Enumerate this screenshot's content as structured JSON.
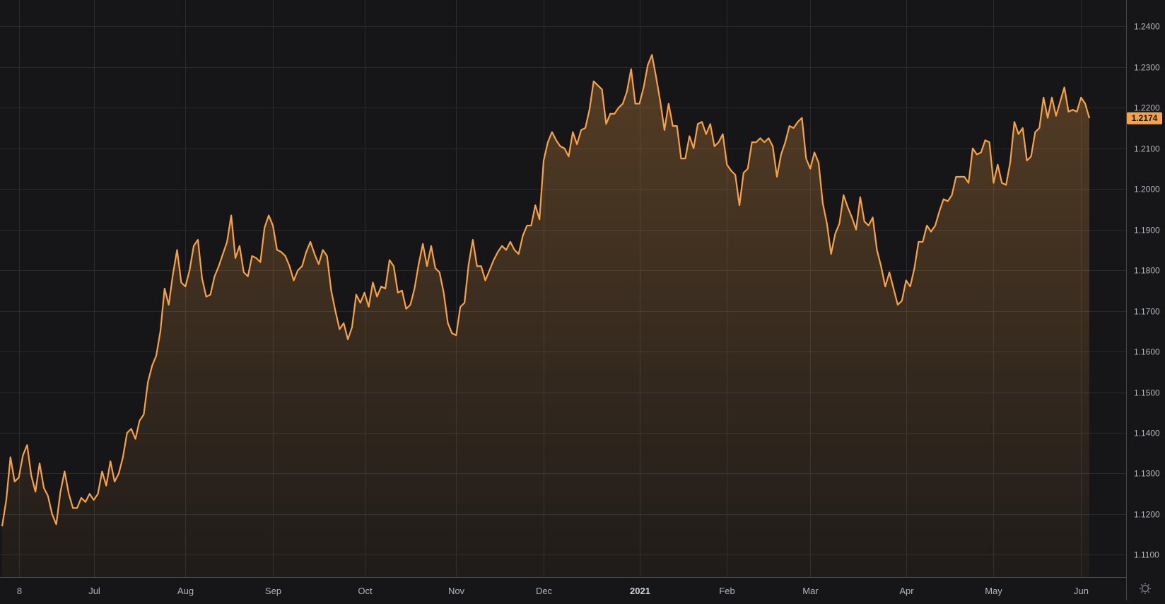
{
  "chart_data": {
    "type": "area",
    "x_labels": [
      {
        "label": "8",
        "idx": 4
      },
      {
        "label": "Jul",
        "idx": 22
      },
      {
        "label": "Aug",
        "idx": 44
      },
      {
        "label": "Sep",
        "idx": 65
      },
      {
        "label": "Oct",
        "idx": 87
      },
      {
        "label": "Nov",
        "idx": 109
      },
      {
        "label": "Dec",
        "idx": 130
      },
      {
        "label": "2021",
        "idx": 153,
        "bold": true
      },
      {
        "label": "Feb",
        "idx": 174
      },
      {
        "label": "Mar",
        "idx": 194
      },
      {
        "label": "Apr",
        "idx": 217
      },
      {
        "label": "May",
        "idx": 238
      },
      {
        "label": "Jun",
        "idx": 259
      }
    ],
    "y_ticks": [
      "1.1100",
      "1.1200",
      "1.1300",
      "1.1400",
      "1.1500",
      "1.1600",
      "1.1700",
      "1.1800",
      "1.1900",
      "1.2000",
      "1.2100",
      "1.2200",
      "1.2300",
      "1.2400"
    ],
    "ylim": [
      1.1045,
      1.2465
    ],
    "last_value": "1.2174",
    "line_color": "#f7a245",
    "values": [
      1.117,
      1.1235,
      1.134,
      1.128,
      1.129,
      1.1345,
      1.137,
      1.1295,
      1.1255,
      1.1325,
      1.1265,
      1.1245,
      1.12,
      1.1175,
      1.1255,
      1.1305,
      1.125,
      1.1215,
      1.1215,
      1.124,
      1.123,
      1.125,
      1.1235,
      1.125,
      1.1305,
      1.127,
      1.133,
      1.128,
      1.13,
      1.134,
      1.14,
      1.141,
      1.1385,
      1.143,
      1.1445,
      1.1525,
      1.1565,
      1.159,
      1.165,
      1.1755,
      1.1715,
      1.179,
      1.185,
      1.177,
      1.176,
      1.18,
      1.186,
      1.1875,
      1.178,
      1.1735,
      1.174,
      1.1785,
      1.181,
      1.184,
      1.187,
      1.1935,
      1.183,
      1.186,
      1.1795,
      1.1785,
      1.1835,
      1.183,
      1.182,
      1.1905,
      1.1935,
      1.191,
      1.185,
      1.1845,
      1.1835,
      1.181,
      1.1775,
      1.18,
      1.181,
      1.1845,
      1.187,
      1.184,
      1.1815,
      1.185,
      1.1835,
      1.175,
      1.17,
      1.1655,
      1.167,
      1.163,
      1.166,
      1.174,
      1.172,
      1.1745,
      1.171,
      1.177,
      1.1735,
      1.176,
      1.1755,
      1.1825,
      1.181,
      1.1745,
      1.175,
      1.1705,
      1.1715,
      1.1755,
      1.1815,
      1.1865,
      1.181,
      1.186,
      1.1805,
      1.1795,
      1.1745,
      1.167,
      1.1645,
      1.164,
      1.171,
      1.172,
      1.1815,
      1.1875,
      1.181,
      1.181,
      1.1775,
      1.18,
      1.1825,
      1.1845,
      1.186,
      1.185,
      1.187,
      1.185,
      1.184,
      1.1885,
      1.191,
      1.191,
      1.196,
      1.1925,
      1.207,
      1.2115,
      1.214,
      1.212,
      1.2105,
      1.21,
      1.208,
      1.214,
      1.211,
      1.2145,
      1.215,
      1.2195,
      1.2265,
      1.2255,
      1.2245,
      1.216,
      1.2185,
      1.2185,
      1.22,
      1.221,
      1.224,
      1.2295,
      1.221,
      1.221,
      1.225,
      1.2305,
      1.233,
      1.2275,
      1.2215,
      1.2145,
      1.221,
      1.2155,
      1.2155,
      1.2075,
      1.2075,
      1.213,
      1.21,
      1.216,
      1.2165,
      1.2135,
      1.216,
      1.2105,
      1.2115,
      1.2135,
      1.206,
      1.2045,
      1.2035,
      1.196,
      1.204,
      1.205,
      1.2115,
      1.2115,
      1.2125,
      1.2115,
      1.2125,
      1.2105,
      1.203,
      1.2085,
      1.2115,
      1.2155,
      1.215,
      1.2165,
      1.2175,
      1.2075,
      1.205,
      1.209,
      1.2065,
      1.1965,
      1.1915,
      1.184,
      1.189,
      1.1915,
      1.1985,
      1.1955,
      1.193,
      1.19,
      1.198,
      1.192,
      1.191,
      1.193,
      1.185,
      1.181,
      1.176,
      1.1795,
      1.1755,
      1.1715,
      1.1725,
      1.1775,
      1.176,
      1.1805,
      1.187,
      1.187,
      1.191,
      1.1895,
      1.191,
      1.1945,
      1.1975,
      1.197,
      1.1985,
      1.203,
      1.203,
      1.203,
      1.2015,
      1.21,
      1.2085,
      1.209,
      1.212,
      1.2115,
      1.2015,
      1.206,
      1.2015,
      1.201,
      1.2065,
      1.2165,
      1.2135,
      1.215,
      1.207,
      1.208,
      1.214,
      1.215,
      1.2225,
      1.2175,
      1.2225,
      1.218,
      1.2215,
      1.225,
      1.219,
      1.2195,
      1.219,
      1.2225,
      1.221,
      1.2174
    ]
  }
}
